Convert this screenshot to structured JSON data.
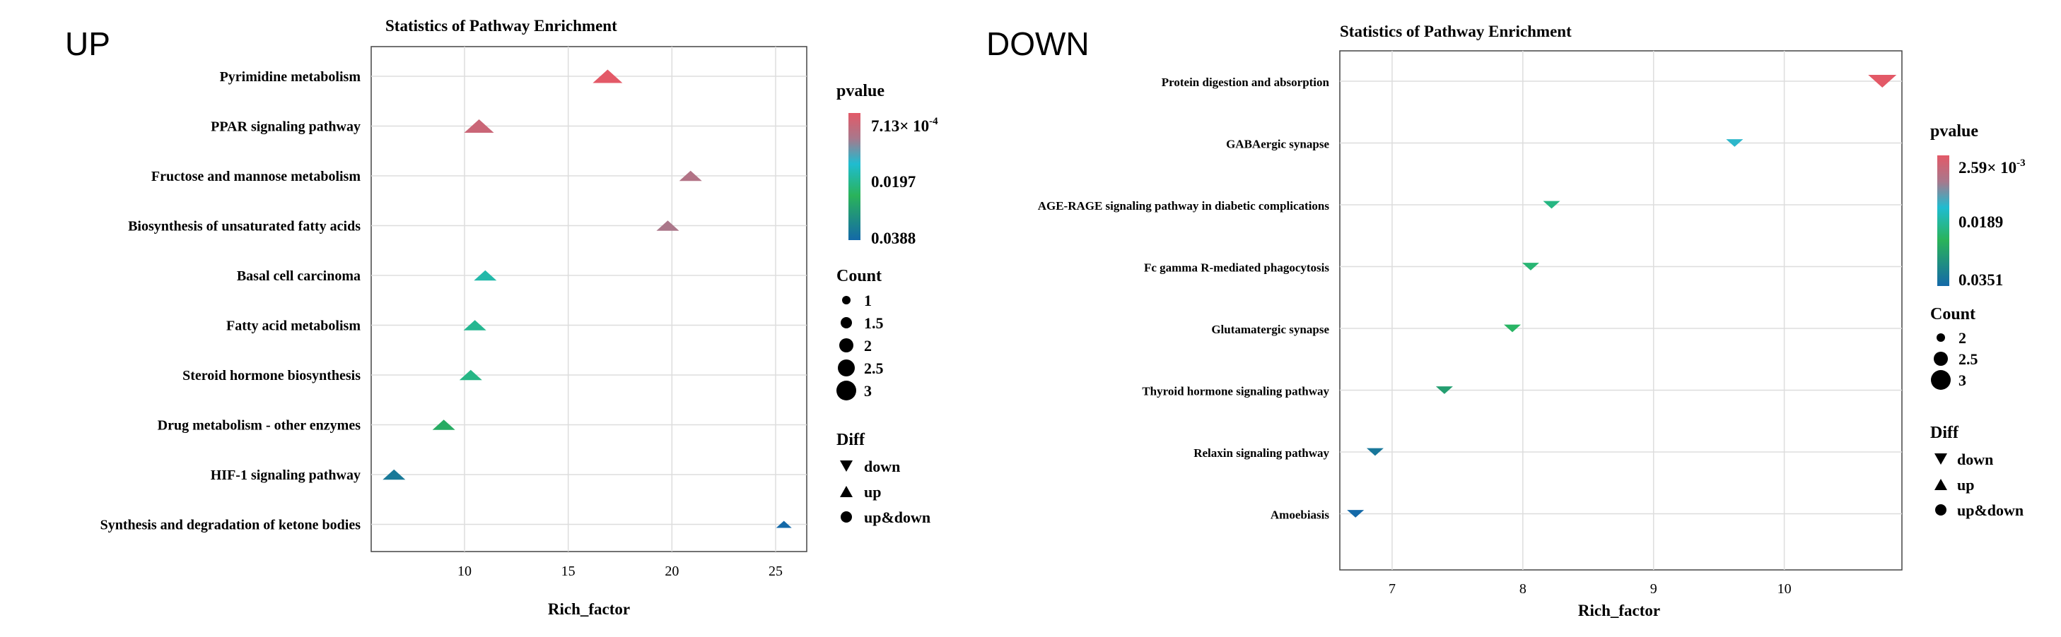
{
  "chart_data": [
    {
      "type": "scatter",
      "panel_label": "UP",
      "title": "Statistics of Pathway Enrichment",
      "xlabel": "Rich_factor",
      "ylabel": "",
      "xlim": [
        5.5,
        26.5
      ],
      "x_ticks": [
        "10",
        "15",
        "20",
        "25"
      ],
      "grid": true,
      "categories": [
        "Pyrimidine metabolism",
        "PPAR signaling pathway",
        "Fructose and mannose metabolism",
        "Biosynthesis of unsaturated fatty acids",
        "Basal cell carcinoma",
        "Fatty acid metabolism",
        "Steroid hormone biosynthesis",
        "Drug metabolism - other enzymes",
        "HIF-1 signaling pathway",
        "Synthesis and degradation of ketone bodies"
      ],
      "points": [
        {
          "pathway": "Pyrimidine metabolism",
          "rich_factor": 16.9,
          "count": 3,
          "pvalue": 0.000713,
          "diff": "up"
        },
        {
          "pathway": "PPAR signaling pathway",
          "rich_factor": 10.7,
          "count": 3,
          "pvalue": 0.004,
          "diff": "up"
        },
        {
          "pathway": "Fructose and mannose metabolism",
          "rich_factor": 20.9,
          "count": 2,
          "pvalue": 0.007,
          "diff": "up"
        },
        {
          "pathway": "Biosynthesis of unsaturated fatty acids",
          "rich_factor": 19.8,
          "count": 2,
          "pvalue": 0.008,
          "diff": "up"
        },
        {
          "pathway": "Basal cell carcinoma",
          "rich_factor": 11.0,
          "count": 2,
          "pvalue": 0.019,
          "diff": "up"
        },
        {
          "pathway": "Fatty acid metabolism",
          "rich_factor": 10.5,
          "count": 2,
          "pvalue": 0.021,
          "diff": "up"
        },
        {
          "pathway": "Steroid hormone biosynthesis",
          "rich_factor": 10.3,
          "count": 2,
          "pvalue": 0.022,
          "diff": "up"
        },
        {
          "pathway": "Drug metabolism - other enzymes",
          "rich_factor": 9.0,
          "count": 2,
          "pvalue": 0.027,
          "diff": "up"
        },
        {
          "pathway": "HIF-1 signaling pathway",
          "rich_factor": 6.6,
          "count": 2,
          "pvalue": 0.036,
          "diff": "up"
        },
        {
          "pathway": "Synthesis and degradation of ketone bodies",
          "rich_factor": 25.4,
          "count": 1,
          "pvalue": 0.0388,
          "diff": "up"
        }
      ],
      "legend": {
        "pvalue_title": "pvalue",
        "pvalue_labels": [
          "7.13× 10",
          "-4",
          "0.0197",
          "0.0388"
        ],
        "count_title": "Count",
        "count_labels": [
          "1",
          "1.5",
          "2",
          "2.5",
          "3"
        ],
        "count_values": [
          1,
          1.5,
          2,
          2.5,
          3
        ],
        "diff_title": "Diff",
        "diff_labels": [
          "down",
          "up",
          "up&down"
        ]
      },
      "colors": {
        "high": "#e35967",
        "mid": "#1fbcd0",
        "low_mid": "#2ab35a",
        "low": "#1469a8"
      }
    },
    {
      "type": "scatter",
      "panel_label": "DOWN",
      "title": "Statistics of Pathway Enrichment",
      "xlabel": "Rich_factor",
      "ylabel": "",
      "xlim": [
        6.6,
        10.9
      ],
      "x_ticks": [
        "7",
        "8",
        "9",
        "10"
      ],
      "grid": true,
      "categories": [
        "Protein digestion and absorption",
        "GABAergic synapse",
        "AGE-RAGE signaling pathway in diabetic complications",
        "Fc gamma R-mediated phagocytosis",
        "Glutamatergic synapse",
        "Thyroid hormone signaling pathway",
        "Relaxin signaling pathway",
        "Amoebiasis"
      ],
      "points": [
        {
          "pathway": "Protein digestion and absorption",
          "rich_factor": 10.75,
          "count": 3,
          "pvalue": 0.00259,
          "diff": "down"
        },
        {
          "pathway": "GABAergic synapse",
          "rich_factor": 9.62,
          "count": 2,
          "pvalue": 0.015,
          "diff": "down"
        },
        {
          "pathway": "AGE-RAGE signaling pathway in diabetic complications",
          "rich_factor": 8.22,
          "count": 2,
          "pvalue": 0.021,
          "diff": "down"
        },
        {
          "pathway": "Fc gamma R-mediated phagocytosis",
          "rich_factor": 8.06,
          "count": 2,
          "pvalue": 0.022,
          "diff": "down"
        },
        {
          "pathway": "Glutamatergic synapse",
          "rich_factor": 7.92,
          "count": 2,
          "pvalue": 0.023,
          "diff": "down"
        },
        {
          "pathway": "Thyroid hormone signaling pathway",
          "rich_factor": 7.4,
          "count": 2,
          "pvalue": 0.027,
          "diff": "down"
        },
        {
          "pathway": "Relaxin signaling pathway",
          "rich_factor": 6.87,
          "count": 2,
          "pvalue": 0.033,
          "diff": "down"
        },
        {
          "pathway": "Amoebiasis",
          "rich_factor": 6.72,
          "count": 2,
          "pvalue": 0.0351,
          "diff": "down"
        }
      ],
      "legend": {
        "pvalue_title": "pvalue",
        "pvalue_labels": [
          "2.59× 10",
          "-3",
          "0.0189",
          "0.0351"
        ],
        "count_title": "Count",
        "count_labels": [
          "2",
          "2.5",
          "3"
        ],
        "count_values": [
          2,
          2.5,
          3
        ],
        "diff_title": "Diff",
        "diff_labels": [
          "down",
          "up",
          "up&down"
        ]
      },
      "colors": {
        "high": "#e35967",
        "mid": "#1fbcd0",
        "low_mid": "#2ab35a",
        "low": "#1469a8"
      }
    }
  ]
}
